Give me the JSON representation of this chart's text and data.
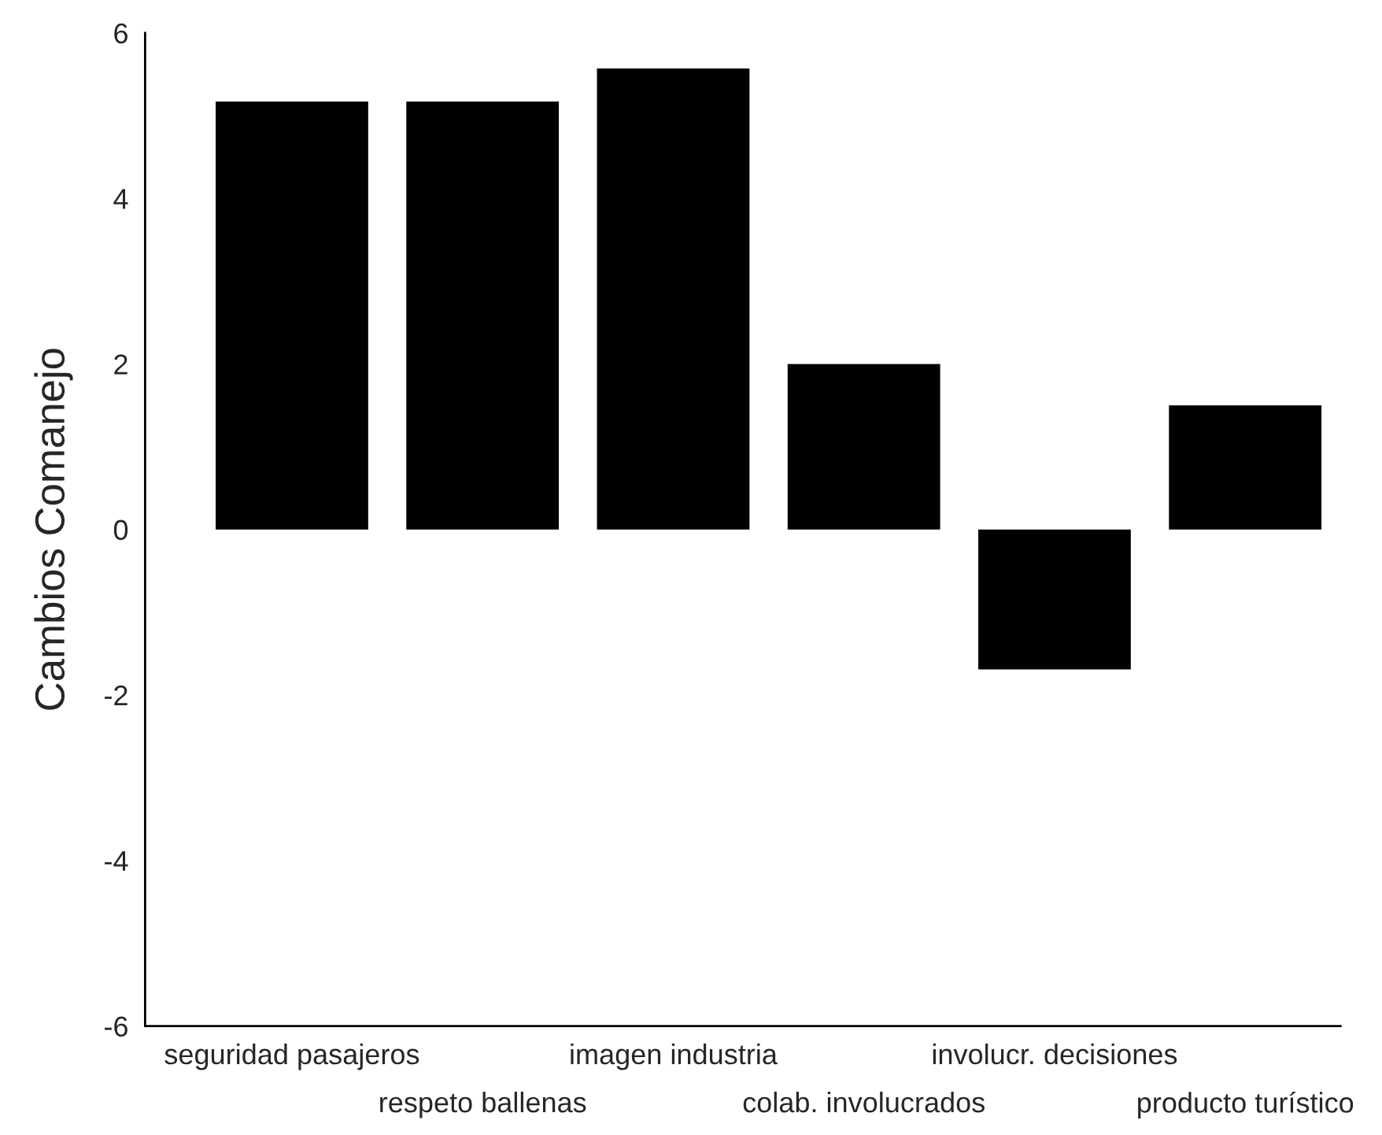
{
  "chart_data": {
    "type": "bar",
    "ylabel": "Cambios Comanejo",
    "categories": [
      "seguridad pasajeros",
      "respeto ballenas",
      "imagen industria",
      "colab. involucrados",
      "involucr. decisiones",
      "producto turístico"
    ],
    "values": [
      5.17,
      5.17,
      5.57,
      2.0,
      -1.69,
      1.5
    ],
    "color": "#000000",
    "ylim": [
      -6,
      6
    ],
    "yticks": [
      -6,
      -4,
      -2,
      0,
      2,
      4,
      6
    ],
    "grid": false,
    "legend": false
  }
}
